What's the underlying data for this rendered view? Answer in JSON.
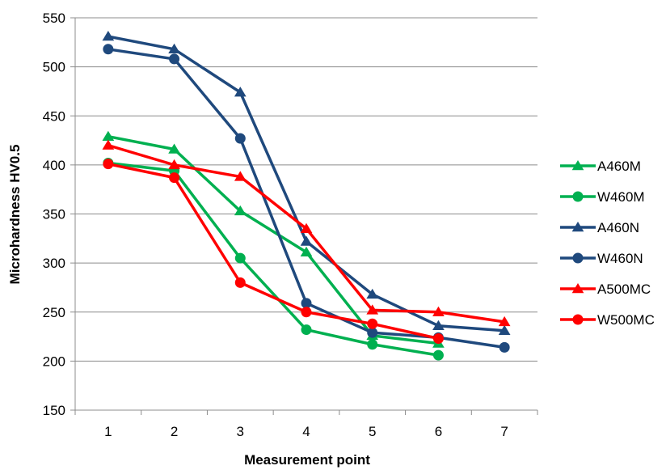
{
  "chart_data": {
    "type": "line",
    "title": "",
    "xlabel": "Measurement point",
    "ylabel": "Microhardness HV0.5",
    "ylim": [
      150,
      550
    ],
    "yticks": [
      150,
      200,
      250,
      300,
      350,
      400,
      450,
      500,
      550
    ],
    "categories": [
      "1",
      "2",
      "3",
      "4",
      "5",
      "6",
      "7"
    ],
    "grid": "horizontal",
    "legend_position": "right",
    "series": [
      {
        "name": "A460M",
        "color": "#00B050",
        "marker": "triangle",
        "values": [
          429,
          416,
          353,
          311,
          226,
          218,
          null
        ]
      },
      {
        "name": "W460M",
        "color": "#00B050",
        "marker": "circle",
        "values": [
          402,
          394,
          305,
          232,
          217,
          206,
          null
        ]
      },
      {
        "name": "A460N",
        "color": "#1F497D",
        "marker": "triangle",
        "values": [
          531,
          518,
          474,
          322,
          268,
          236,
          231
        ]
      },
      {
        "name": "W460N",
        "color": "#1F497D",
        "marker": "circle",
        "values": [
          518,
          508,
          427,
          259,
          229,
          224,
          214
        ]
      },
      {
        "name": "A500MC",
        "color": "#FF0000",
        "marker": "triangle",
        "values": [
          420,
          400,
          388,
          335,
          252,
          250,
          240
        ]
      },
      {
        "name": "W500MC",
        "color": "#FF0000",
        "marker": "circle",
        "values": [
          401,
          387,
          280,
          250,
          238,
          223,
          null
        ]
      }
    ]
  }
}
